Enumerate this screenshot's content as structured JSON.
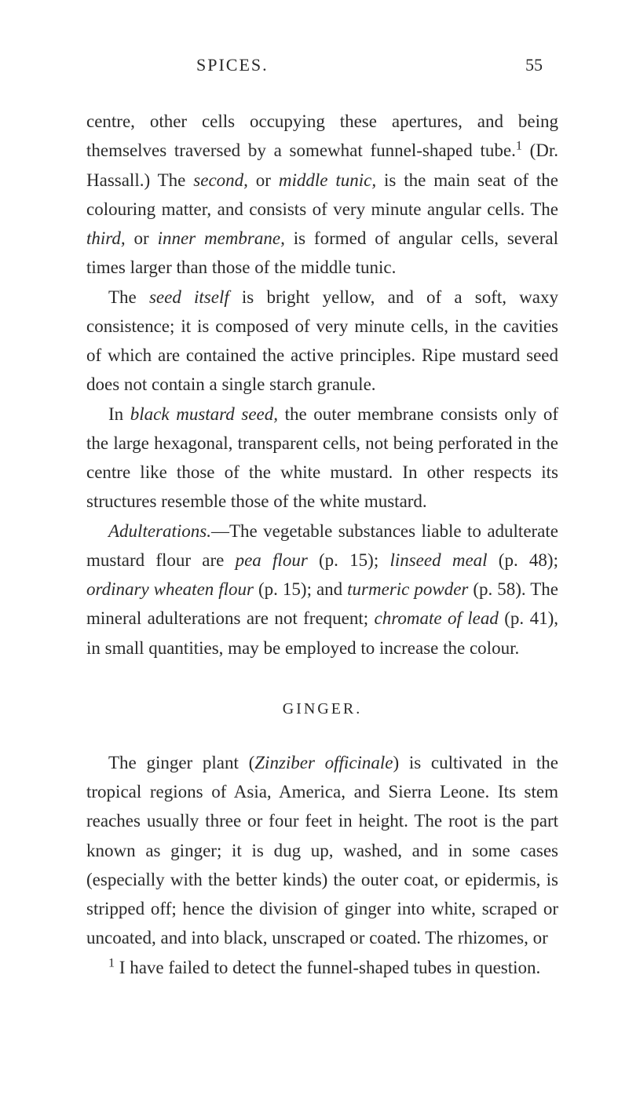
{
  "header": {
    "title": "SPICES.",
    "page_number": "55"
  },
  "paragraphs": {
    "p1_a": "centre, other cells occupying these apertures, and being themselves traversed by a somewhat funnel-shaped tube.",
    "p1_sup": "1",
    "p1_b": " (Dr. Hassall.) The ",
    "p1_em1": "second,",
    "p1_c": " or ",
    "p1_em2": "middle tunic,",
    "p1_d": " is the main seat of the colouring matter, and consists of very minute angular cells. The ",
    "p1_em3": "third,",
    "p1_e": " or ",
    "p1_em4": "inner membrane,",
    "p1_f": " is formed of angular cells, several times larger than those of the middle tunic.",
    "p2_a": "The ",
    "p2_em1": "seed itself",
    "p2_b": " is bright yellow, and of a soft, waxy consistence; it is composed of very minute cells, in the cavities of which are contained the active principles. Ripe mustard seed does not contain a single starch granule.",
    "p3_a": "In ",
    "p3_em1": "black mustard seed,",
    "p3_b": " the outer membrane consists only of the large hexagonal, transparent cells, not being perforated in the centre like those of the white mustard. In other respects its structures resemble those of the white mustard.",
    "p4_em1": "Adulterations.",
    "p4_a": "—The vegetable substances liable to adulterate mustard flour are ",
    "p4_em2": "pea flour",
    "p4_b": " (p. 15); ",
    "p4_em3": "linseed meal",
    "p4_c": " (p. 48); ",
    "p4_em4": "ordinary wheaten flour",
    "p4_d": " (p. 15); and ",
    "p4_em5": "turmeric powder",
    "p4_e": " (p. 58). The mineral adulterations are not frequent; ",
    "p4_em6": "chromate of lead",
    "p4_f": " (p. 41), in small quantities, may be employed to increase the colour.",
    "section_heading": "GINGER.",
    "p5_a": "The ginger plant (",
    "p5_em1": "Zinziber officinale",
    "p5_b": ") is cultivated in the tropical regions of Asia, America, and Sierra Leone. Its stem reaches usually three or four feet in height. The root is the part known as ginger; it is dug up, washed, and in some cases (especially with the better kinds) the outer coat, or epidermis, is stripped off; hence the division of ginger into white, scraped or uncoated, and into black, unscraped or coated. The rhizomes, or",
    "footnote_sup": "1",
    "footnote": " I have failed to detect the funnel-shaped tubes in question."
  }
}
